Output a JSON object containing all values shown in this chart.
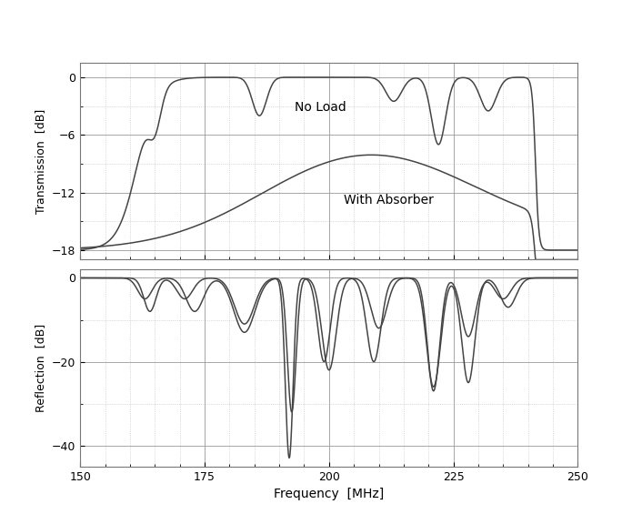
{
  "freq_range": [
    150,
    250
  ],
  "transmission_ylim": [
    -19,
    1.5
  ],
  "transmission_yticks": [
    0,
    -6,
    -12,
    -18
  ],
  "reflection_ylim": [
    -45,
    2
  ],
  "reflection_yticks": [
    0,
    -20,
    -40
  ],
  "xlabel": "Frequency  [MHz]",
  "ylabel_top": "Transmission  [dB]",
  "ylabel_bottom": "Reflection  [dB]",
  "label_noload": "No Load",
  "label_absorber": "With Absorber",
  "line_color": "#444444",
  "grid_major_color": "#999999",
  "grid_minor_color": "#bbbbbb",
  "bg_color": "#ffffff",
  "xticks": [
    150,
    175,
    200,
    225,
    250
  ],
  "grid_major_ls": "-",
  "grid_minor_ls": ":"
}
